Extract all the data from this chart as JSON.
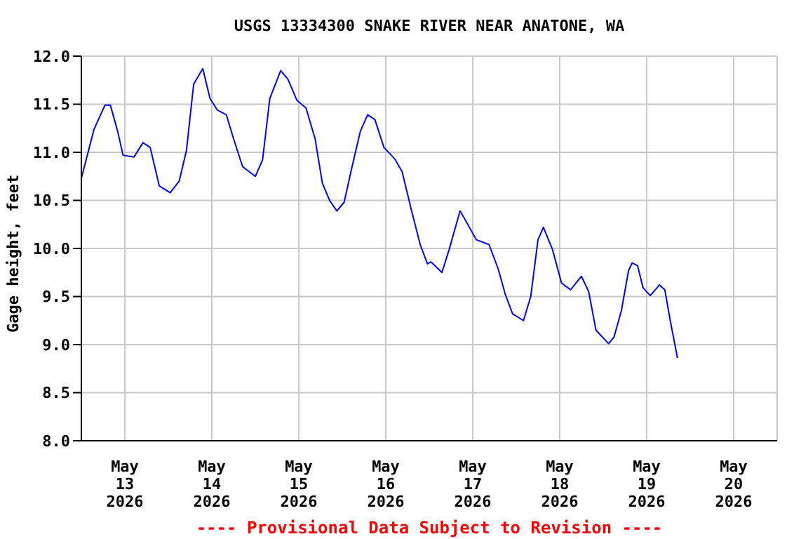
{
  "chart_data": {
    "type": "line",
    "title": "USGS 13334300 SNAKE RIVER NEAR ANATONE, WA",
    "ylabel": "Gage height, feet",
    "annotations": [
      "---- Provisional Data Subject to Revision ----"
    ],
    "x": [
      "2026-05-12T12:00",
      "2026-05-12T15:30",
      "2026-05-12T18:30",
      "2026-05-12T20:00",
      "2026-05-12T22:00",
      "2026-05-12T23:30",
      "2026-05-13T02:30",
      "2026-05-13T05:00",
      "2026-05-13T07:00",
      "2026-05-13T09:30",
      "2026-05-13T12:30",
      "2026-05-13T15:00",
      "2026-05-13T17:00",
      "2026-05-13T19:00",
      "2026-05-13T21:30",
      "2026-05-13T23:30",
      "2026-05-14T01:30",
      "2026-05-14T04:00",
      "2026-05-14T06:00",
      "2026-05-14T08:30",
      "2026-05-14T12:00",
      "2026-05-14T14:00",
      "2026-05-14T16:00",
      "2026-05-14T19:00",
      "2026-05-14T21:00",
      "2026-05-14T23:30",
      "2026-05-15T02:00",
      "2026-05-15T04:30",
      "2026-05-15T06:30",
      "2026-05-15T08:30",
      "2026-05-15T10:30",
      "2026-05-15T12:30",
      "2026-05-15T15:00",
      "2026-05-15T17:00",
      "2026-05-15T19:00",
      "2026-05-15T21:00",
      "2026-05-15T23:30",
      "2026-05-16T02:30",
      "2026-05-16T04:30",
      "2026-05-16T07:00",
      "2026-05-16T09:30",
      "2026-05-16T11:30",
      "2026-05-16T12:30",
      "2026-05-16T15:30",
      "2026-05-16T17:30",
      "2026-05-16T20:30",
      "2026-05-16T22:30",
      "2026-05-17T01:00",
      "2026-05-17T04:30",
      "2026-05-17T07:00",
      "2026-05-17T09:00",
      "2026-05-17T11:00",
      "2026-05-17T14:00",
      "2026-05-17T16:00",
      "2026-05-17T18:00",
      "2026-05-17T19:30",
      "2026-05-17T22:00",
      "2026-05-18T00:30",
      "2026-05-18T03:00",
      "2026-05-18T06:00",
      "2026-05-18T08:00",
      "2026-05-18T10:00",
      "2026-05-18T13:30",
      "2026-05-18T15:00",
      "2026-05-18T17:00",
      "2026-05-18T19:00",
      "2026-05-18T20:00",
      "2026-05-18T21:30",
      "2026-05-18T23:00",
      "2026-05-19T01:00",
      "2026-05-19T03:30",
      "2026-05-19T05:00",
      "2026-05-19T06:30",
      "2026-05-19T08:30"
    ],
    "series": [
      {
        "color": "#0000ff",
        "values": [
          10.73,
          11.24,
          11.49,
          11.49,
          11.22,
          10.97,
          10.95,
          11.1,
          11.05,
          10.65,
          10.58,
          10.7,
          11.02,
          11.71,
          11.87,
          11.56,
          11.44,
          11.39,
          11.14,
          10.85,
          10.75,
          10.92,
          11.56,
          11.85,
          11.76,
          11.54,
          11.46,
          11.14,
          10.68,
          10.5,
          10.39,
          10.48,
          10.9,
          11.22,
          11.39,
          11.34,
          11.05,
          10.93,
          10.8,
          10.41,
          10.04,
          9.84,
          9.86,
          9.75,
          9.99,
          10.39,
          10.26,
          10.09,
          10.04,
          9.79,
          9.52,
          9.32,
          9.25,
          9.5,
          10.09,
          10.22,
          9.99,
          9.64,
          9.57,
          9.71,
          9.55,
          9.15,
          9.01,
          9.08,
          9.35,
          9.77,
          9.85,
          9.82,
          9.59,
          9.51,
          9.62,
          9.57,
          9.25,
          8.86
        ]
      }
    ],
    "xlim": [
      "2026-05-12T12:00",
      "2026-05-20T12:00"
    ],
    "xticks": [
      {
        "value": "2026-05-13",
        "label": "May\n13\n2026"
      },
      {
        "value": "2026-05-14",
        "label": "May\n14\n2026"
      },
      {
        "value": "2026-05-15",
        "label": "May\n15\n2026"
      },
      {
        "value": "2026-05-16",
        "label": "May\n16\n2026"
      },
      {
        "value": "2026-05-17",
        "label": "May\n17\n2026"
      },
      {
        "value": "2026-05-18",
        "label": "May\n18\n2026"
      },
      {
        "value": "2026-05-19",
        "label": "May\n19\n2026"
      },
      {
        "value": "2026-05-20",
        "label": "May\n20\n2026"
      }
    ],
    "ylim": [
      8,
      12
    ],
    "yticks": [
      {
        "value": 8,
        "label": "8.0"
      },
      {
        "value": 8.5,
        "label": "8.5"
      },
      {
        "value": 9,
        "label": "9.0"
      },
      {
        "value": 9.5,
        "label": "9.5"
      },
      {
        "value": 10,
        "label": "10.0"
      },
      {
        "value": 10.5,
        "label": "10.5"
      },
      {
        "value": 11,
        "label": "11.0"
      },
      {
        "value": 11.5,
        "label": "11.5"
      },
      {
        "value": 12,
        "label": "12.0"
      }
    ],
    "grid": true,
    "legend": false,
    "marker": "none",
    "line_style": "solid"
  }
}
